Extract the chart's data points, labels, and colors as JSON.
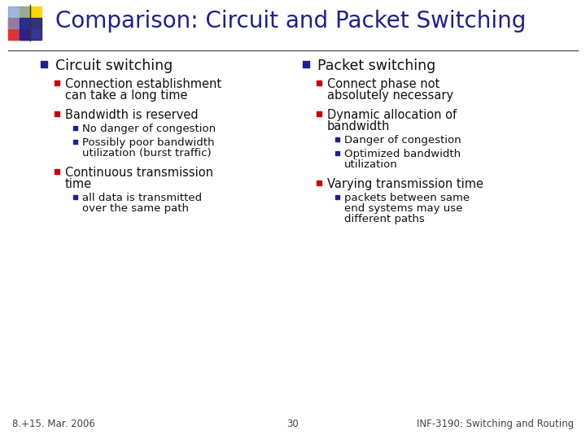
{
  "title": "Comparison: Circuit and Packet Switching",
  "title_color": "#1F1F8F",
  "title_fontsize": 20,
  "bg_color": "#FFFFFF",
  "footer_left": "8.+15. Mar. 2006",
  "footer_center": "30",
  "footer_right": "INF-3190: Switching and Routing",
  "footer_fontsize": 8.5,
  "bullet_color_navy": "#1F1F8F",
  "bullet_color_red": "#CC0000",
  "left_col": {
    "header": "Circuit switching",
    "items": [
      {
        "text": "Connection establishment\ncan take a long time",
        "sub": []
      },
      {
        "text": "Bandwidth is reserved",
        "sub": [
          "No danger of congestion",
          "Possibly poor bandwidth\nutilization (burst traffic)"
        ]
      },
      {
        "text": "Continuous transmission\ntime",
        "sub": [
          "all data is transmitted\nover the same path"
        ]
      }
    ]
  },
  "right_col": {
    "header": "Packet switching",
    "items": [
      {
        "text": "Connect phase not\nabsolutely necessary",
        "sub": []
      },
      {
        "text": "Dynamic allocation of\nbandwidth",
        "sub": [
          "Danger of congestion",
          "Optimized bandwidth\nutilization"
        ]
      },
      {
        "text": "Varying transmission time",
        "sub": [
          "packets between same\nend systems may use\ndifferent paths"
        ]
      }
    ]
  },
  "logo": {
    "yellow": "#FFD700",
    "red": "#DD3333",
    "blue_dark": "#1F1F8F",
    "blue_light": "#7799CC"
  }
}
